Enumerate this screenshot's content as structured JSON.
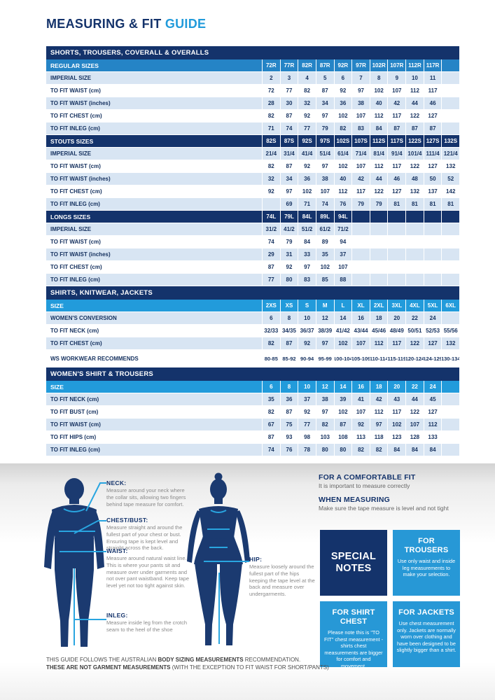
{
  "title": {
    "part1": "MEASURING & FIT",
    "part2": "GUIDE"
  },
  "colors": {
    "navy": "#14336B",
    "blue_band": "#2584C6",
    "size_band": "#229BDB",
    "light_row": "#D8E5F3",
    "cyan": "#29A5E0",
    "box_blue": "#2798D6",
    "silhouette": "#1B3A70"
  },
  "table": {
    "sections": [
      {
        "header": "SHORTS, TROUSERS, COVERALL & OVERALLS",
        "groups": [
          {
            "band": {
              "label": "REGULAR SIZES",
              "style": "blue",
              "values": [
                "72R",
                "77R",
                "82R",
                "87R",
                "92R",
                "97R",
                "102R",
                "107R",
                "112R",
                "117R",
                ""
              ]
            },
            "rows": [
              {
                "label": "IMPERIAL SIZE",
                "values": [
                  "2",
                  "3",
                  "4",
                  "5",
                  "6",
                  "7",
                  "8",
                  "9",
                  "10",
                  "11",
                  ""
                ]
              },
              {
                "label": "TO FIT WAIST (cm)",
                "values": [
                  "72",
                  "77",
                  "82",
                  "87",
                  "92",
                  "97",
                  "102",
                  "107",
                  "112",
                  "117",
                  ""
                ]
              },
              {
                "label": "TO FIT WAIST (inches)",
                "values": [
                  "28",
                  "30",
                  "32",
                  "34",
                  "36",
                  "38",
                  "40",
                  "42",
                  "44",
                  "46",
                  ""
                ]
              },
              {
                "label": "TO FIT CHEST (cm)",
                "values": [
                  "82",
                  "87",
                  "92",
                  "97",
                  "102",
                  "107",
                  "112",
                  "117",
                  "122",
                  "127",
                  ""
                ]
              },
              {
                "label": "TO FIT INLEG (cm)",
                "values": [
                  "71",
                  "74",
                  "77",
                  "79",
                  "82",
                  "83",
                  "84",
                  "87",
                  "87",
                  "87",
                  ""
                ]
              }
            ]
          },
          {
            "band": {
              "label": "STOUTS SIZES",
              "style": "navy",
              "values": [
                "82S",
                "87S",
                "92S",
                "97S",
                "102S",
                "107S",
                "112S",
                "117S",
                "122S",
                "127S",
                "132S"
              ]
            },
            "rows": [
              {
                "label": "IMPERIAL SIZE",
                "values": [
                  "21/4",
                  "31/4",
                  "41/4",
                  "51/4",
                  "61/4",
                  "71/4",
                  "81/4",
                  "91/4",
                  "101/4",
                  "111/4",
                  "121/4"
                ]
              },
              {
                "label": "TO FIT WAIST (cm)",
                "values": [
                  "82",
                  "87",
                  "92",
                  "97",
                  "102",
                  "107",
                  "112",
                  "117",
                  "122",
                  "127",
                  "132"
                ]
              },
              {
                "label": "TO FIT WAIST (inches)",
                "values": [
                  "32",
                  "34",
                  "36",
                  "38",
                  "40",
                  "42",
                  "44",
                  "46",
                  "48",
                  "50",
                  "52"
                ]
              },
              {
                "label": "TO FIT CHEST (cm)",
                "values": [
                  "92",
                  "97",
                  "102",
                  "107",
                  "112",
                  "117",
                  "122",
                  "127",
                  "132",
                  "137",
                  "142"
                ]
              },
              {
                "label": "TO FIT INLEG (cm)",
                "values": [
                  "",
                  "69",
                  "71",
                  "74",
                  "76",
                  "79",
                  "79",
                  "81",
                  "81",
                  "81",
                  "81"
                ]
              }
            ]
          },
          {
            "band": {
              "label": "LONGS SIZES",
              "style": "navy",
              "values": [
                "74L",
                "79L",
                "84L",
                "89L",
                "94L",
                "",
                "",
                "",
                "",
                "",
                ""
              ]
            },
            "rows": [
              {
                "label": "IMPERIAL SIZE",
                "values": [
                  "31/2",
                  "41/2",
                  "51/2",
                  "61/2",
                  "71/2",
                  "",
                  "",
                  "",
                  "",
                  "",
                  ""
                ]
              },
              {
                "label": "TO FIT WAIST (cm)",
                "values": [
                  "74",
                  "79",
                  "84",
                  "89",
                  "94",
                  "",
                  "",
                  "",
                  "",
                  "",
                  ""
                ]
              },
              {
                "label": "TO FIT WAIST (inches)",
                "values": [
                  "29",
                  "31",
                  "33",
                  "35",
                  "37",
                  "",
                  "",
                  "",
                  "",
                  "",
                  ""
                ]
              },
              {
                "label": "TO FIT CHEST (cm)",
                "values": [
                  "87",
                  "92",
                  "97",
                  "102",
                  "107",
                  "",
                  "",
                  "",
                  "",
                  "",
                  ""
                ]
              },
              {
                "label": "TO FIT INLEG (cm)",
                "values": [
                  "77",
                  "80",
                  "83",
                  "85",
                  "88",
                  "",
                  "",
                  "",
                  "",
                  "",
                  ""
                ]
              }
            ]
          }
        ]
      },
      {
        "header": "SHIRTS, KNITWEAR, JACKETS",
        "groups": [
          {
            "band": {
              "label": "SIZE",
              "style": "size",
              "values": [
                "2XS",
                "XS",
                "S",
                "M",
                "L",
                "XL",
                "2XL",
                "3XL",
                "4XL",
                "5XL",
                "6XL"
              ]
            },
            "rows": [
              {
                "label": "WOMEN'S CONVERSION",
                "values": [
                  "6",
                  "8",
                  "10",
                  "12",
                  "14",
                  "16",
                  "18",
                  "20",
                  "22",
                  "24",
                  ""
                ]
              },
              {
                "label": "TO FIT NECK (cm)",
                "values": [
                  "32/33",
                  "34/35",
                  "36/37",
                  "38/39",
                  "41/42",
                  "43/44",
                  "45/46",
                  "48/49",
                  "50/51",
                  "52/53",
                  "55/56"
                ]
              },
              {
                "label": "TO FIT CHEST (cm)",
                "values": [
                  "82",
                  "87",
                  "92",
                  "97",
                  "102",
                  "107",
                  "112",
                  "117",
                  "122",
                  "127",
                  "132"
                ]
              },
              {
                "label": "WS WORKWEAR RECOMMENDS",
                "tall": true,
                "values": [
                  "80-85",
                  "85-92",
                  "90-94",
                  "95-99",
                  "100-104",
                  "105-109",
                  "110-114",
                  "115-119",
                  "120-124",
                  "124-129",
                  "130-134"
                ]
              }
            ]
          }
        ]
      },
      {
        "header": "WOMEN'S SHIRT & TROUSERS",
        "groups": [
          {
            "band": {
              "label": "SIZE",
              "style": "size",
              "values": [
                "6",
                "8",
                "10",
                "12",
                "14",
                "16",
                "18",
                "20",
                "22",
                "24",
                ""
              ]
            },
            "rows": [
              {
                "label": "TO FIT NECK (cm)",
                "values": [
                  "35",
                  "36",
                  "37",
                  "38",
                  "39",
                  "41",
                  "42",
                  "43",
                  "44",
                  "45",
                  ""
                ]
              },
              {
                "label": "TO FIT BUST (cm)",
                "values": [
                  "82",
                  "87",
                  "92",
                  "97",
                  "102",
                  "107",
                  "112",
                  "117",
                  "122",
                  "127",
                  ""
                ]
              },
              {
                "label": "TO FIT WAIST (cm)",
                "values": [
                  "67",
                  "75",
                  "77",
                  "82",
                  "87",
                  "92",
                  "97",
                  "102",
                  "107",
                  "112",
                  ""
                ]
              },
              {
                "label": "TO FIT HIPS (cm)",
                "values": [
                  "87",
                  "93",
                  "98",
                  "103",
                  "108",
                  "113",
                  "118",
                  "123",
                  "128",
                  "133",
                  ""
                ]
              },
              {
                "label": "TO FIT INLEG (cm)",
                "values": [
                  "74",
                  "76",
                  "78",
                  "80",
                  "80",
                  "82",
                  "82",
                  "84",
                  "84",
                  "84",
                  ""
                ]
              }
            ]
          }
        ]
      }
    ]
  },
  "measure_points": {
    "neck": {
      "label": "NECK:",
      "desc": "Measure around your neck where the collar sits, allowing two fingers behind tape measure for comfort."
    },
    "chest": {
      "label": "CHEST/BUST:",
      "desc": "Measure straight and around the fullest part of your chest or bust. Ensuring tape is kept level and straight across the back."
    },
    "waist": {
      "label": "WAIST:",
      "desc": "Measure around natural waist line. This is where your pants sit and measure over under garments and not over pant waistband. Keep tape level yet not too tight against skin."
    },
    "inleg": {
      "label": "INLEG:",
      "desc": "Measure inside leg from the crotch seam to the heel of the shoe"
    },
    "hip": {
      "label": "HIP:",
      "desc": "Measure loosely around the fullest part of the hips keeping the tape level at the back and measure over undergarments."
    }
  },
  "fit_notes": {
    "comfort_title": "FOR A COMFORTABLE FIT",
    "comfort_text": "It is important to measure correctly",
    "measuring_title": "WHEN MEASURING",
    "measuring_text": "Make sure the tape measure is level and not tight"
  },
  "note_boxes": [
    {
      "title": "SPECIAL NOTES",
      "body": ""
    },
    {
      "title": "FOR TROUSERS",
      "body": "Use only waist and inside leg measurements to make your selection."
    },
    {
      "title": "FOR SHIRT CHEST",
      "body": "Please note this is \"TO FIT\" chest measurement - shirts chest measurements are bigger for comfort and movement."
    },
    {
      "title": "FOR JACKETS",
      "body": "Use chest measurement only. Jackets are normally worn over clothing and have been designed to be slightly bigger than a shirt."
    }
  ],
  "disclaimer": {
    "line1_normal1": "THIS GUIDE FOLLOWS THE AUSTRALIAN ",
    "line1_bold": "BODY SIZING MEASUREMENTS",
    "line1_normal2": " RECOMMENDATION.",
    "line2_bold": "THESE ARE NOT GARMENT MEASUREMENTS",
    "line2_normal": " (WITH THE EXCEPTION TO FIT WAIST FOR SHORT/PANTS)"
  }
}
